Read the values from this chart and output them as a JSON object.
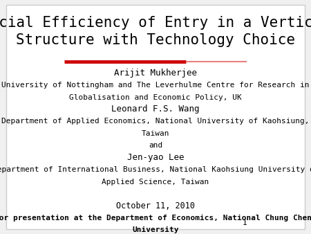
{
  "background_color": "#f0f0f0",
  "slide_bg": "#ffffff",
  "title_line1": "Social Efficiency of Entry in a Vertical",
  "title_line2": "Structure with Technology Choice",
  "title_fontsize": 15,
  "title_color": "#000000",
  "red_line_color": "#cc0000",
  "body_lines": [
    {
      "text": "Arijit Mukherjee",
      "bold": false,
      "fontsize": 9
    },
    {
      "text": "University of Nottingham and The Leverhulme Centre for Research in",
      "bold": false,
      "fontsize": 8
    },
    {
      "text": "Globalisation and Economic Policy, UK",
      "bold": false,
      "fontsize": 8
    },
    {
      "text": "Leonard F.S. Wang",
      "bold": false,
      "fontsize": 9
    },
    {
      "text": "Department of Applied Economics, National University of Kaohsiung,",
      "bold": false,
      "fontsize": 8
    },
    {
      "text": "Taiwan",
      "bold": false,
      "fontsize": 8
    },
    {
      "text": "and",
      "bold": false,
      "fontsize": 8
    },
    {
      "text": "Jen-yao Lee",
      "bold": false,
      "fontsize": 9
    },
    {
      "text": "Department of International Business, National Kaohsiung University of",
      "bold": false,
      "fontsize": 8
    },
    {
      "text": "Applied Science, Taiwan",
      "bold": false,
      "fontsize": 8
    },
    {
      "text": "",
      "bold": false,
      "fontsize": 5
    },
    {
      "text": "October 11, 2010",
      "bold": false,
      "fontsize": 8.5
    },
    {
      "text": "For presentation at the Department of Economics, National Chung Cheng",
      "bold": true,
      "fontsize": 8
    },
    {
      "text": "University",
      "bold": true,
      "fontsize": 8
    }
  ],
  "page_number": "1",
  "font_family": "monospace"
}
